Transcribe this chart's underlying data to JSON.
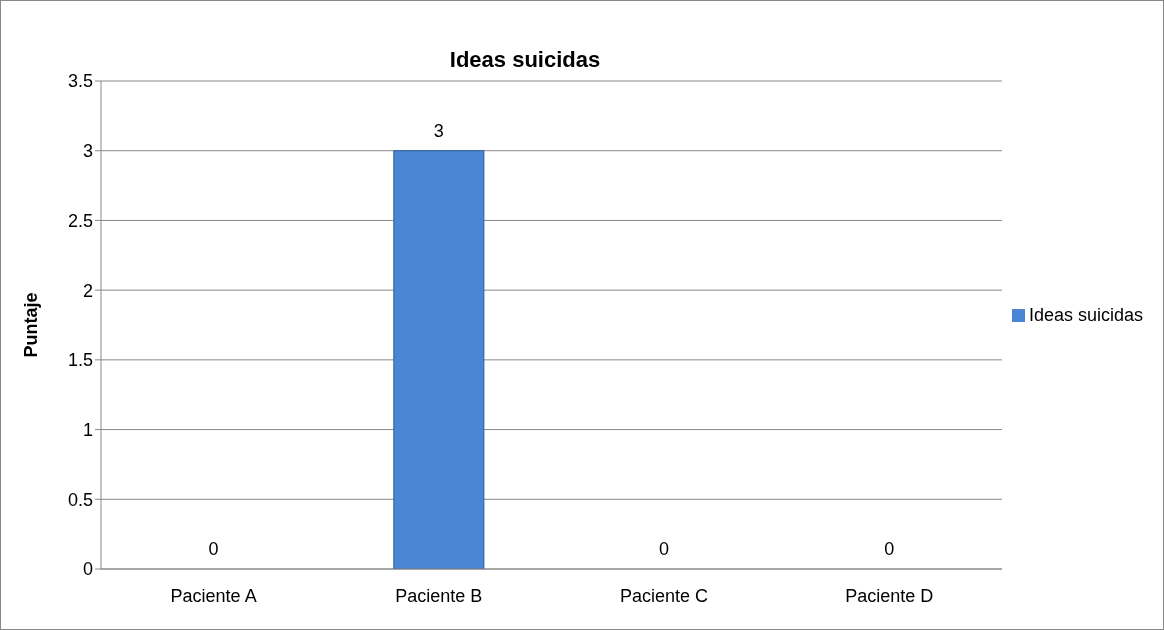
{
  "chart_data": {
    "type": "bar",
    "title": "Ideas suicidas",
    "ylabel": "Puntaje",
    "categories": [
      "Paciente A",
      "Paciente B",
      "Paciente C",
      "Paciente D"
    ],
    "series": [
      {
        "name": "Ideas suicidas",
        "color": "#4a86d4",
        "values": [
          0,
          3,
          0,
          0
        ]
      }
    ],
    "ylim": [
      0,
      3.5
    ],
    "yticks": [
      0,
      0.5,
      1,
      1.5,
      2,
      2.5,
      3,
      3.5
    ],
    "grid": "y",
    "legend": "right",
    "data_labels": true
  }
}
